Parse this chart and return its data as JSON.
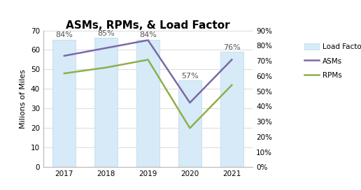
{
  "years": [
    2017,
    2018,
    2019,
    2020,
    2021
  ],
  "load_factor_pct": [
    84,
    85,
    84,
    57,
    76
  ],
  "asms": [
    57,
    61,
    65,
    33,
    55
  ],
  "rpms": [
    48,
    51,
    55,
    20,
    42
  ],
  "bar_color": "#d6eaf8",
  "bar_edgecolor": "#c5dff0",
  "asms_color": "#7b68a8",
  "rpms_color": "#8db04a",
  "title": "ASMs, RPMs, & Load Factor",
  "ylabel_left": "Milions of Miles",
  "ylim_left": [
    0,
    70
  ],
  "ylim_right": [
    0,
    90
  ],
  "yticks_left": [
    0,
    10,
    20,
    30,
    40,
    50,
    60,
    70
  ],
  "yticks_right": [
    0,
    10,
    20,
    30,
    40,
    50,
    60,
    70,
    80,
    90
  ],
  "legend_items": [
    "Load Factor",
    "ASMs",
    "RPMs"
  ],
  "bar_width": 0.55,
  "title_fontsize": 11,
  "label_fontsize": 8,
  "tick_fontsize": 7.5,
  "legend_fontsize": 7.5
}
